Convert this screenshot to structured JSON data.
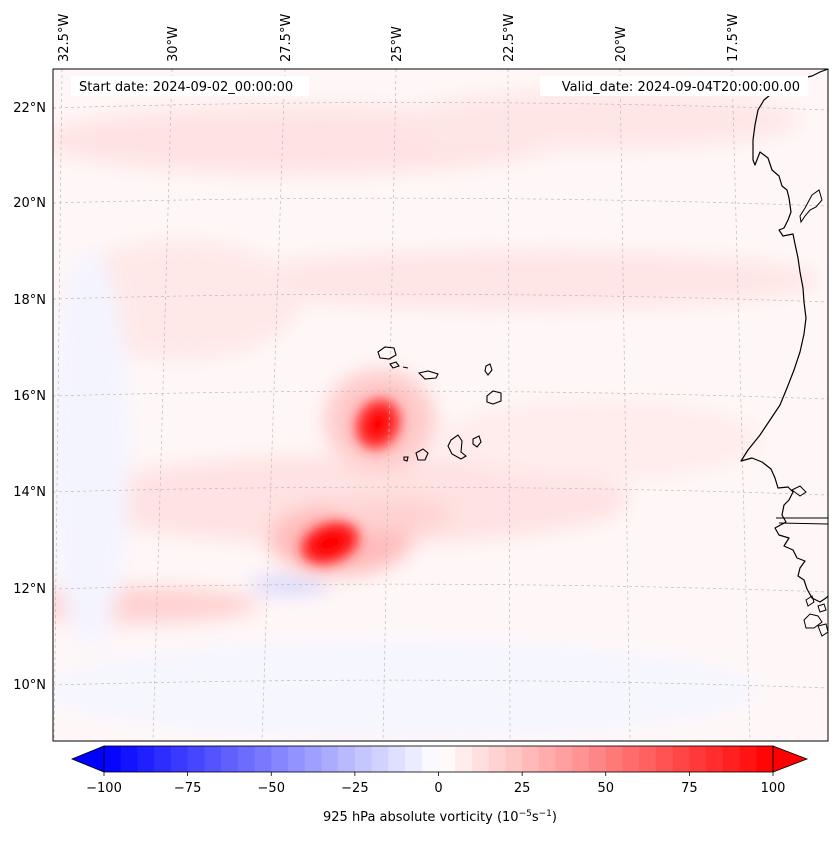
{
  "map": {
    "start_date_label": "Start date: 2024-09-02_00:00:00",
    "valid_date_label": "Valid_date: 2024-09-04T20:00:00.00",
    "lon_ticks": [
      "32.5°W",
      "30°W",
      "27.5°W",
      "25°W",
      "22.5°W",
      "20°W",
      "17.5°W"
    ],
    "lat_ticks": [
      "22°N",
      "20°N",
      "18°N",
      "16°N",
      "14°N",
      "12°N",
      "10°N"
    ],
    "features": {
      "vortex_1": {
        "label": "vorticity maximum near 15.5°N 25.5°W",
        "value": 100
      },
      "vortex_2": {
        "label": "vorticity maximum near 13°N 27°W",
        "value": 100
      },
      "islands": "Cape Verde Islands",
      "coastline": "West African coast"
    }
  },
  "colorbar": {
    "ticks": [
      "−100",
      "−75",
      "−50",
      "−25",
      "0",
      "25",
      "50",
      "75",
      "100"
    ],
    "tick_values": [
      -100,
      -75,
      -50,
      -25,
      0,
      25,
      50,
      75,
      100
    ],
    "min": -100,
    "max": 100,
    "label_main": "925 hPa absolute vorticity (10",
    "label_exp1": "−5",
    "label_mid": "s",
    "label_exp2": "−1",
    "label_end": ")",
    "negative_color": "#0000ff",
    "zero_color": "#ffffff",
    "positive_color": "#ff0000"
  },
  "colors": {
    "frame": "#000000",
    "grid": "#bbbbbb",
    "coast": "#000000"
  }
}
